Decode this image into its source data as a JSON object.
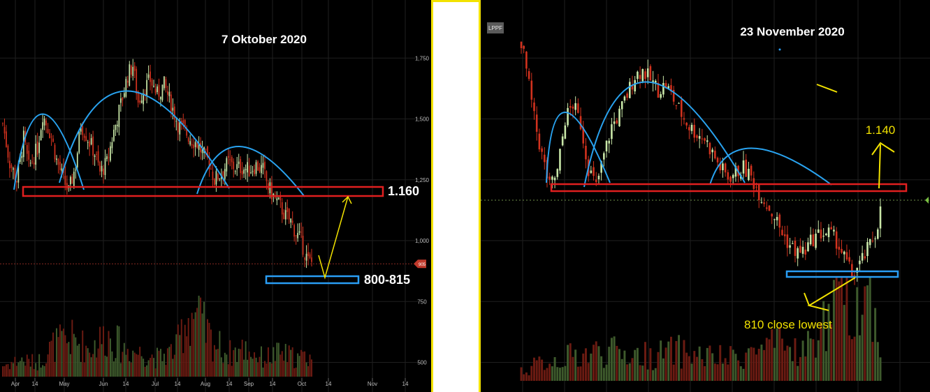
{
  "chart_data": [
    {
      "type": "candlestick",
      "title": "7 Oktober 2020",
      "x_tick_labels": [
        "Apr",
        "14",
        "May",
        "Jun",
        "14",
        "Jul",
        "14",
        "Aug",
        "14",
        "Sep",
        "14",
        "Oct",
        "14",
        "Nov",
        "14"
      ],
      "y_tick_labels": [
        "1,750",
        "1,500",
        "1,250",
        "1,000",
        "750",
        "500"
      ],
      "y_ticks": [
        1750,
        1500,
        1250,
        1000,
        750,
        500
      ],
      "last_price_label": "905",
      "last_price": 905,
      "ylim": [
        470,
        1960
      ],
      "close_path": [
        [
          0,
          1480
        ],
        [
          4,
          1320
        ],
        [
          8,
          1250
        ],
        [
          12,
          1420
        ],
        [
          15,
          1300
        ],
        [
          20,
          1380
        ],
        [
          23,
          1520
        ],
        [
          28,
          1430
        ],
        [
          31,
          1330
        ],
        [
          35,
          1250
        ],
        [
          38,
          1200
        ],
        [
          42,
          1310
        ],
        [
          45,
          1480
        ],
        [
          49,
          1420
        ],
        [
          53,
          1360
        ],
        [
          56,
          1280
        ],
        [
          60,
          1320
        ],
        [
          64,
          1450
        ],
        [
          68,
          1560
        ],
        [
          72,
          1680
        ],
        [
          75,
          1720
        ],
        [
          78,
          1570
        ],
        [
          81,
          1620
        ],
        [
          85,
          1660
        ],
        [
          89,
          1600
        ],
        [
          93,
          1640
        ],
        [
          97,
          1560
        ],
        [
          101,
          1480
        ],
        [
          105,
          1450
        ],
        [
          108,
          1420
        ],
        [
          112,
          1400
        ],
        [
          115,
          1360
        ],
        [
          119,
          1320
        ],
        [
          122,
          1250
        ],
        [
          126,
          1280
        ],
        [
          130,
          1320
        ],
        [
          134,
          1300
        ],
        [
          138,
          1300
        ],
        [
          142,
          1290
        ],
        [
          146,
          1310
        ],
        [
          150,
          1290
        ],
        [
          153,
          1220
        ],
        [
          157,
          1170
        ],
        [
          160,
          1140
        ],
        [
          163,
          1100
        ],
        [
          166,
          1080
        ],
        [
          169,
          1030
        ],
        [
          172,
          1000
        ],
        [
          174,
          950
        ],
        [
          176,
          915
        ],
        [
          178,
          910
        ]
      ],
      "volume_path": [
        [
          0,
          0.12
        ],
        [
          10,
          0.18
        ],
        [
          20,
          0.15
        ],
        [
          30,
          0.35
        ],
        [
          40,
          0.4
        ],
        [
          50,
          0.3
        ],
        [
          60,
          0.45
        ],
        [
          70,
          0.3
        ],
        [
          80,
          0.25
        ],
        [
          90,
          0.2
        ],
        [
          100,
          0.3
        ],
        [
          105,
          0.6
        ],
        [
          110,
          0.7
        ],
        [
          120,
          0.4
        ],
        [
          130,
          0.25
        ],
        [
          140,
          0.3
        ],
        [
          150,
          0.2
        ],
        [
          160,
          0.25
        ],
        [
          170,
          0.2
        ],
        [
          178,
          0.22
        ]
      ],
      "annotations": [
        {
          "text": "1.160",
          "kind": "resistance box",
          "color": "#e02020",
          "value": 1160
        },
        {
          "text": "800-815",
          "kind": "support box",
          "color": "#2a9df4",
          "value_range": [
            800,
            815
          ]
        }
      ],
      "pattern_arcs": "blue arcs tracing peaks (head and shoulders)"
    },
    {
      "type": "candlestick",
      "title": "23 November 2020",
      "ticker_label": "LPPF",
      "annotations": [
        {
          "text": "1.140",
          "kind": "resistance box",
          "color": "#e02020",
          "value": 1140
        },
        {
          "text": "810 close lowest",
          "kind": "support box",
          "color": "#2a9df4",
          "value": 810
        }
      ],
      "close_path": [
        [
          0,
          1820
        ],
        [
          2,
          1700
        ],
        [
          5,
          1500
        ],
        [
          8,
          1350
        ],
        [
          11,
          1220
        ],
        [
          14,
          1280
        ],
        [
          17,
          1500
        ],
        [
          20,
          1560
        ],
        [
          23,
          1480
        ],
        [
          26,
          1300
        ],
        [
          29,
          1220
        ],
        [
          32,
          1350
        ],
        [
          35,
          1470
        ],
        [
          38,
          1520
        ],
        [
          41,
          1600
        ],
        [
          44,
          1680
        ],
        [
          47,
          1700
        ],
        [
          50,
          1660
        ],
        [
          53,
          1620
        ],
        [
          56,
          1640
        ],
        [
          59,
          1580
        ],
        [
          62,
          1520
        ],
        [
          65,
          1470
        ],
        [
          68,
          1440
        ],
        [
          71,
          1420
        ],
        [
          74,
          1360
        ],
        [
          77,
          1300
        ],
        [
          80,
          1260
        ],
        [
          83,
          1280
        ],
        [
          86,
          1300
        ],
        [
          89,
          1260
        ],
        [
          92,
          1200
        ],
        [
          95,
          1150
        ],
        [
          98,
          1100
        ],
        [
          101,
          1030
        ],
        [
          104,
          980
        ],
        [
          107,
          950
        ],
        [
          110,
          960
        ],
        [
          113,
          1010
        ],
        [
          116,
          1030
        ],
        [
          119,
          1030
        ],
        [
          122,
          1000
        ],
        [
          125,
          930
        ],
        [
          128,
          860
        ],
        [
          131,
          900
        ],
        [
          134,
          960
        ],
        [
          137,
          1030
        ],
        [
          139,
          1120
        ]
      ],
      "volume_path": [
        [
          0,
          0.1
        ],
        [
          10,
          0.2
        ],
        [
          20,
          0.25
        ],
        [
          30,
          0.3
        ],
        [
          40,
          0.28
        ],
        [
          50,
          0.25
        ],
        [
          60,
          0.3
        ],
        [
          70,
          0.25
        ],
        [
          80,
          0.22
        ],
        [
          90,
          0.3
        ],
        [
          100,
          0.35
        ],
        [
          110,
          0.3
        ],
        [
          115,
          0.5
        ],
        [
          120,
          0.65
        ],
        [
          125,
          0.9
        ],
        [
          130,
          0.8
        ],
        [
          135,
          0.85
        ],
        [
          139,
          0.4
        ]
      ],
      "ylim": [
        470,
        1960
      ],
      "pattern_arcs": "blue arcs tracing peaks (head and shoulders)"
    }
  ]
}
